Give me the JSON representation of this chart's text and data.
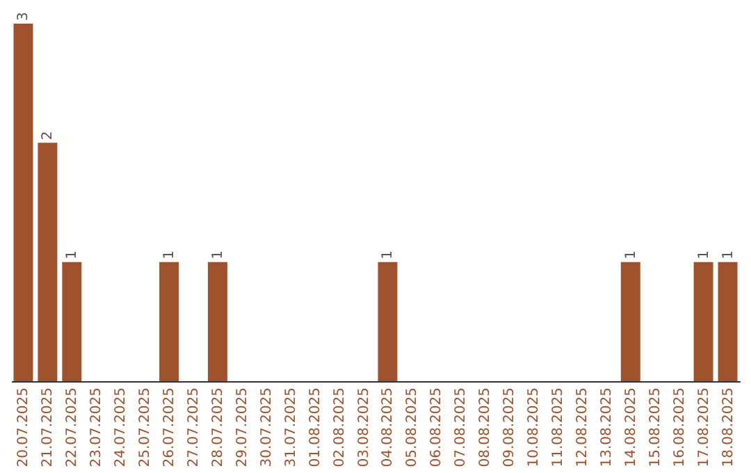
{
  "chart_data": {
    "type": "bar",
    "categories": [
      "20.07.2025",
      "21.07.2025",
      "22.07.2025",
      "23.07.2025",
      "24.07.2025",
      "25.07.2025",
      "26.07.2025",
      "27.07.2025",
      "28.07.2025",
      "29.07.2025",
      "30.07.2025",
      "31.07.2025",
      "01.08.2025",
      "02.08.2025",
      "03.08.2025",
      "04.08.2025",
      "05.08.2025",
      "06.08.2025",
      "07.08.2025",
      "08.08.2025",
      "09.08.2025",
      "10.08.2025",
      "11.08.2025",
      "12.08.2025",
      "13.08.2025",
      "14.08.2025",
      "15.08.2025",
      "16.08.2025",
      "17.08.2025",
      "18.08.2025"
    ],
    "values": [
      3,
      2,
      1,
      0,
      0,
      0,
      1,
      0,
      1,
      0,
      0,
      0,
      0,
      0,
      0,
      1,
      0,
      0,
      0,
      0,
      0,
      0,
      0,
      0,
      0,
      1,
      0,
      0,
      1,
      1
    ],
    "value_labels": [
      "3",
      "2",
      "1",
      null,
      null,
      null,
      "1",
      null,
      "1",
      null,
      null,
      null,
      null,
      null,
      null,
      "1",
      null,
      null,
      null,
      null,
      null,
      null,
      null,
      null,
      null,
      "1",
      null,
      null,
      "1",
      "1"
    ],
    "color": "#a0522d"
  }
}
